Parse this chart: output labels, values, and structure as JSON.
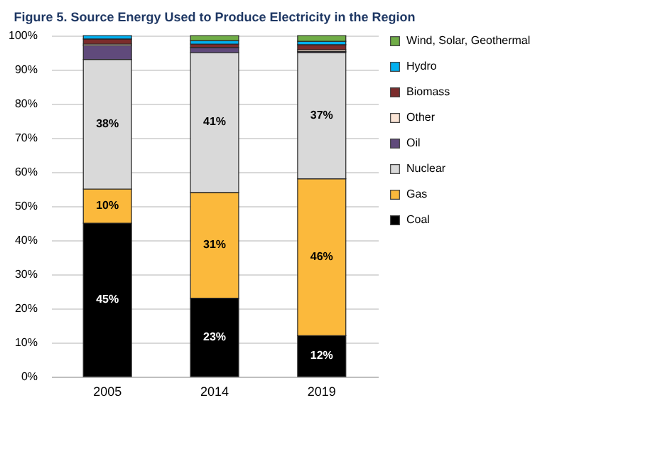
{
  "chart_data": {
    "type": "bar",
    "title": "Figure 5. Source Energy Used to Produce Electricity in the Region",
    "categories": [
      "2005",
      "2014",
      "2019"
    ],
    "stacked": true,
    "legend": "right",
    "grid": "y",
    "ylim": [
      0,
      100
    ],
    "yticks": [
      {
        "value": 0,
        "label": "0%"
      },
      {
        "value": 10,
        "label": "10%"
      },
      {
        "value": 20,
        "label": "20%"
      },
      {
        "value": 30,
        "label": "30%"
      },
      {
        "value": 40,
        "label": "40%"
      },
      {
        "value": 50,
        "label": "50%"
      },
      {
        "value": 60,
        "label": "60%"
      },
      {
        "value": 70,
        "label": "70%"
      },
      {
        "value": 80,
        "label": "80%"
      },
      {
        "value": 90,
        "label": "90%"
      },
      {
        "value": 100,
        "label": "100%"
      }
    ],
    "series": [
      {
        "name": "Coal",
        "color": "#000000",
        "values": [
          45,
          23,
          12
        ],
        "value_labels": [
          "45%",
          "23%",
          "12%"
        ]
      },
      {
        "name": "Gas",
        "color": "#fbb93c",
        "values": [
          10,
          31,
          46
        ],
        "value_labels": [
          "10%",
          "31%",
          "46%"
        ]
      },
      {
        "name": "Nuclear",
        "color": "#d9d9d9",
        "values": [
          38,
          41,
          37
        ],
        "value_labels": [
          "38%",
          "41%",
          "37%"
        ]
      },
      {
        "name": "Oil",
        "color": "#604a7b",
        "values": [
          4,
          1.5,
          0.3
        ]
      },
      {
        "name": "Other",
        "color": "#fbe5d6",
        "values": [
          0.5,
          null,
          0.5
        ]
      },
      {
        "name": "Biomass",
        "color": "#7b2c2c",
        "values": [
          1.5,
          1,
          1.5
        ]
      },
      {
        "name": "Hydro",
        "color": "#00b0f0",
        "values": [
          1,
          1,
          1
        ]
      },
      {
        "name": "Wind, Solar, Geothermal",
        "color": "#70ad47",
        "values": [
          0,
          1.5,
          1.7
        ]
      }
    ]
  }
}
